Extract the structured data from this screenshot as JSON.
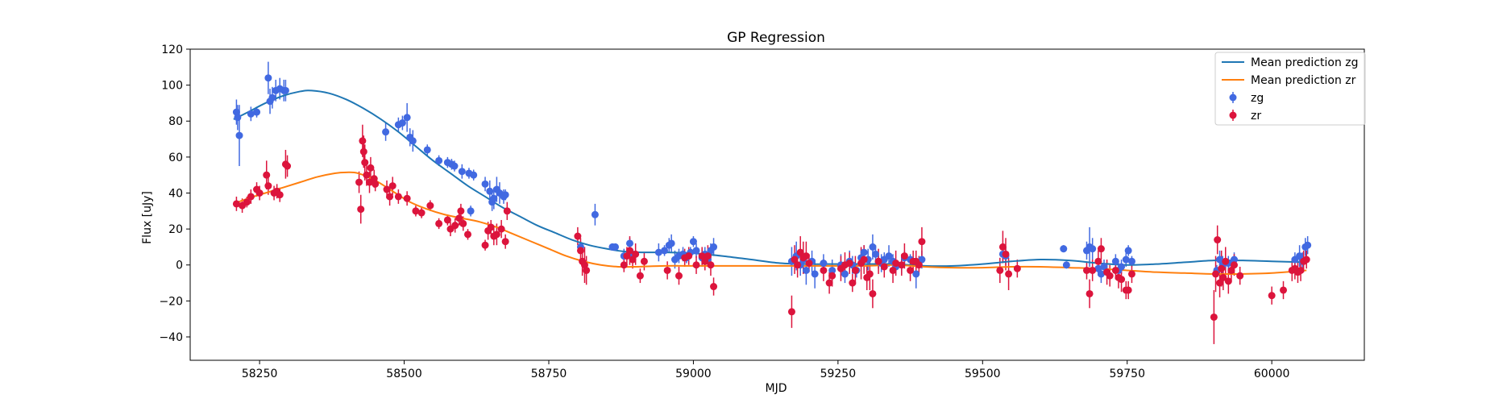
{
  "chart_data": {
    "type": "line",
    "title": "GP Regression",
    "xlabel": "MJD",
    "ylabel": "Flux [uJy]",
    "xlim": [
      58130,
      60160
    ],
    "ylim": [
      -53,
      120
    ],
    "xticks": [
      58250,
      58500,
      58750,
      59000,
      59250,
      59500,
      59750,
      60000
    ],
    "yticks": [
      -40,
      -20,
      0,
      20,
      40,
      60,
      80,
      100,
      120
    ],
    "grid": false,
    "legend_position": "top-right",
    "colors": {
      "mean_zg": "#1f77b4",
      "mean_zr": "#ff7f0e",
      "zg": "#4169e1",
      "zr": "#dc143c"
    },
    "series": [
      {
        "name": "Mean prediction zg",
        "kind": "line",
        "color_key": "mean_zg",
        "x": [
          58205,
          58230,
          58260,
          58290,
          58320,
          58340,
          58370,
          58400,
          58430,
          58460,
          58490,
          58520,
          58550,
          58580,
          58610,
          58640,
          58670,
          58700,
          58730,
          58760,
          58790,
          58820,
          58850,
          58880,
          58910,
          58950,
          59000,
          59050,
          59100,
          59150,
          59200,
          59250,
          59300,
          59350,
          59400,
          59450,
          59500,
          59550,
          59600,
          59650,
          59700,
          59750,
          59800,
          59850,
          59900,
          59950,
          60000,
          60060
        ],
        "y": [
          81,
          85,
          90,
          94,
          96.5,
          97,
          95.5,
          92,
          87,
          81,
          74,
          66,
          58,
          51,
          44,
          38,
          32,
          27,
          22,
          18,
          14,
          11,
          9,
          7.5,
          7,
          7,
          6.5,
          5,
          3,
          1,
          0.5,
          0.5,
          0.5,
          0.5,
          -0.5,
          -0.5,
          0.5,
          2,
          3,
          2.5,
          1,
          0,
          0.5,
          1.5,
          2.5,
          2.5,
          2,
          1.5
        ]
      },
      {
        "name": "Mean prediction zr",
        "kind": "line",
        "color_key": "mean_zr",
        "x": [
          58205,
          58230,
          58260,
          58290,
          58320,
          58350,
          58380,
          58400,
          58420,
          58450,
          58480,
          58510,
          58540,
          58570,
          58600,
          58630,
          58660,
          58690,
          58720,
          58750,
          58780,
          58810,
          58840,
          58870,
          58900,
          58950,
          59000,
          59050,
          59100,
          59150,
          59200,
          59250,
          59300,
          59350,
          59400,
          59450,
          59500,
          59550,
          59600,
          59650,
          59700,
          59750,
          59800,
          59850,
          59900,
          59950,
          60000,
          60060
        ],
        "y": [
          34,
          37,
          40,
          43,
          46,
          49,
          51,
          51.5,
          51,
          47,
          41,
          35,
          31,
          28,
          26,
          24,
          21,
          17,
          13,
          9,
          5,
          2,
          0,
          -1,
          -1,
          -0.5,
          -0.5,
          -0.5,
          -0.5,
          -0.5,
          -0.5,
          -0.5,
          -0.5,
          0,
          -1,
          -1.5,
          -1.5,
          -1,
          -1,
          -1.5,
          -2,
          -3,
          -4,
          -4.5,
          -5,
          -5,
          -4.5,
          -3
        ]
      },
      {
        "name": "zg",
        "kind": "errorbar",
        "color_key": "zg",
        "x": [
          58210,
          58212,
          58215,
          58235,
          58245,
          58265,
          58268,
          58272,
          58278,
          58285,
          58292,
          58295,
          58468,
          58490,
          58497,
          58505,
          58510,
          58515,
          58540,
          58560,
          58575,
          58582,
          58587,
          58600,
          58612,
          58615,
          58620,
          58640,
          58648,
          58652,
          58655,
          58660,
          58665,
          58672,
          58675,
          58805,
          58830,
          58860,
          58865,
          58880,
          58890,
          58895,
          58940,
          58950,
          58958,
          58962,
          58968,
          58975,
          58982,
          58988,
          58995,
          59000,
          59005,
          59015,
          59020,
          59025,
          59030,
          59035,
          59170,
          59178,
          59185,
          59190,
          59195,
          59205,
          59210,
          59225,
          59240,
          59255,
          59262,
          59270,
          59275,
          59282,
          59290,
          59295,
          59302,
          59310,
          59315,
          59320,
          59325,
          59330,
          59338,
          59345,
          59350,
          59360,
          59365,
          59375,
          59385,
          59395,
          59535,
          59540,
          59640,
          59645,
          59680,
          59685,
          59690,
          59700,
          59705,
          59710,
          59730,
          59735,
          59740,
          59748,
          59752,
          59758,
          59905,
          59910,
          59915,
          59925,
          59935,
          60040,
          60048,
          60053,
          60058,
          60062
        ],
        "y": [
          85,
          82,
          72,
          84,
          85,
          104,
          91,
          93,
          97,
          98,
          97,
          97,
          74,
          78,
          79,
          82,
          71,
          69,
          64,
          58,
          57,
          56,
          55,
          52,
          51,
          30,
          50,
          45,
          41,
          35,
          37,
          42,
          40,
          38,
          39,
          10,
          28,
          10,
          10,
          5,
          12,
          6,
          7,
          8,
          11,
          12,
          3,
          5,
          6,
          4,
          7,
          13,
          8,
          4,
          6,
          3,
          8,
          10,
          2,
          5,
          0,
          3,
          -3,
          2,
          -5,
          1,
          -3,
          0,
          -5,
          2,
          0,
          -3,
          4,
          7,
          3,
          10,
          6,
          2,
          1,
          3,
          5,
          2,
          -1,
          0,
          4,
          3,
          -5,
          3,
          6,
          5,
          9,
          0,
          8,
          10,
          9,
          -2,
          -5,
          -1,
          2,
          -3,
          -1,
          3,
          8,
          2,
          -3,
          3,
          0,
          1,
          3,
          3,
          5,
          2,
          10,
          11
        ],
        "err": [
          7,
          7,
          17,
          4,
          3,
          9,
          7,
          6,
          6,
          6,
          6,
          6,
          5,
          4,
          4,
          8,
          5,
          6,
          3,
          3,
          3,
          3,
          3,
          4,
          3,
          3,
          3,
          4,
          6,
          5,
          6,
          7,
          6,
          4,
          3,
          3,
          6,
          2,
          2,
          4,
          3,
          3,
          5,
          3,
          4,
          5,
          5,
          4,
          4,
          3,
          3,
          3,
          4,
          5,
          4,
          4,
          4,
          5,
          8,
          8,
          6,
          5,
          8,
          6,
          8,
          5,
          6,
          6,
          5,
          6,
          5,
          4,
          5,
          4,
          6,
          7,
          5,
          4,
          5,
          4,
          6,
          4,
          4,
          5,
          4,
          3,
          8,
          5,
          4,
          5,
          2,
          2,
          5,
          11,
          6,
          4,
          5,
          4,
          4,
          4,
          4,
          4,
          3,
          3,
          3,
          5,
          5,
          4,
          4,
          4,
          6,
          5,
          5,
          5
        ]
      },
      {
        "name": "zr",
        "kind": "errorbar",
        "color_key": "zr",
        "x": [
          58210,
          58220,
          58228,
          58235,
          58245,
          58250,
          58262,
          58265,
          58275,
          58280,
          58285,
          58295,
          58298,
          58422,
          58425,
          58428,
          58430,
          58432,
          58435,
          58440,
          58442,
          58448,
          58450,
          58470,
          58475,
          58480,
          58490,
          58505,
          58520,
          58530,
          58545,
          58560,
          58575,
          58580,
          58588,
          58595,
          58598,
          58602,
          58610,
          58640,
          58645,
          58650,
          58655,
          58660,
          58668,
          58675,
          58678,
          58800,
          58805,
          58808,
          58812,
          58815,
          58880,
          58885,
          58890,
          58895,
          58900,
          58908,
          58915,
          58955,
          58975,
          58985,
          58992,
          59005,
          59015,
          59020,
          59025,
          59030,
          59035,
          59170,
          59175,
          59180,
          59185,
          59190,
          59195,
          59200,
          59225,
          59235,
          59240,
          59255,
          59262,
          59270,
          59275,
          59280,
          59290,
          59295,
          59300,
          59305,
          59310,
          59320,
          59330,
          59345,
          59350,
          59360,
          59365,
          59375,
          59380,
          59385,
          59390,
          59395,
          59530,
          59535,
          59540,
          59545,
          59560,
          59680,
          59685,
          59690,
          59700,
          59705,
          59715,
          59720,
          59730,
          59735,
          59740,
          59748,
          59752,
          59758,
          59900,
          59903,
          59906,
          59910,
          59913,
          59916,
          59920,
          59925,
          59930,
          59935,
          59945,
          60000,
          60020,
          60035,
          60040,
          60045,
          60050,
          60055,
          60060
        ],
        "y": [
          34,
          33,
          35,
          38,
          42,
          40,
          50,
          44,
          40,
          41,
          39,
          56,
          55,
          46,
          31,
          69,
          63,
          57,
          50,
          46,
          54,
          48,
          45,
          42,
          38,
          44,
          38,
          37,
          30,
          29,
          33,
          23,
          25,
          20,
          22,
          26,
          30,
          23,
          17,
          11,
          19,
          21,
          16,
          17,
          20,
          13,
          30,
          16,
          8,
          2,
          0,
          -3,
          0,
          5,
          8,
          3,
          6,
          -6,
          2,
          -3,
          -6,
          4,
          5,
          0,
          5,
          2,
          5,
          0,
          -12,
          -26,
          3,
          0,
          7,
          4,
          5,
          1,
          -3,
          -10,
          -6,
          -2,
          0,
          1,
          -10,
          -3,
          1,
          3,
          -7,
          -5,
          -16,
          2,
          -1,
          -3,
          1,
          0,
          5,
          -3,
          2,
          2,
          0,
          13,
          -3,
          10,
          6,
          -5,
          -2,
          -3,
          -16,
          -3,
          2,
          9,
          -4,
          -6,
          -3,
          -7,
          -8,
          -14,
          -14,
          -5,
          -29,
          -5,
          14,
          -10,
          -2,
          -7,
          2,
          -9,
          -3,
          0,
          -6,
          -17,
          -14,
          -3,
          -2,
          -4,
          -3,
          2,
          3
        ],
        "err": [
          4,
          4,
          3,
          4,
          4,
          4,
          8,
          5,
          4,
          4,
          4,
          8,
          6,
          6,
          8,
          9,
          9,
          10,
          6,
          6,
          6,
          5,
          4,
          5,
          5,
          5,
          4,
          4,
          3,
          3,
          3,
          3,
          3,
          4,
          4,
          4,
          4,
          4,
          3,
          3,
          5,
          4,
          5,
          6,
          5,
          4,
          5,
          5,
          7,
          8,
          10,
          8,
          4,
          5,
          8,
          5,
          6,
          4,
          5,
          5,
          5,
          5,
          5,
          5,
          5,
          5,
          6,
          6,
          5,
          9,
          8,
          7,
          9,
          9,
          8,
          5,
          6,
          6,
          6,
          7,
          7,
          6,
          5,
          8,
          9,
          8,
          7,
          9,
          8,
          7,
          6,
          7,
          7,
          6,
          7,
          6,
          6,
          6,
          5,
          8,
          7,
          9,
          9,
          9,
          5,
          5,
          8,
          6,
          6,
          6,
          7,
          6,
          5,
          6,
          7,
          5,
          5,
          5,
          15,
          10,
          8,
          8,
          10,
          7,
          8,
          7,
          6,
          6,
          5,
          5,
          5,
          6,
          6,
          6,
          6,
          6,
          5
        ]
      }
    ]
  }
}
